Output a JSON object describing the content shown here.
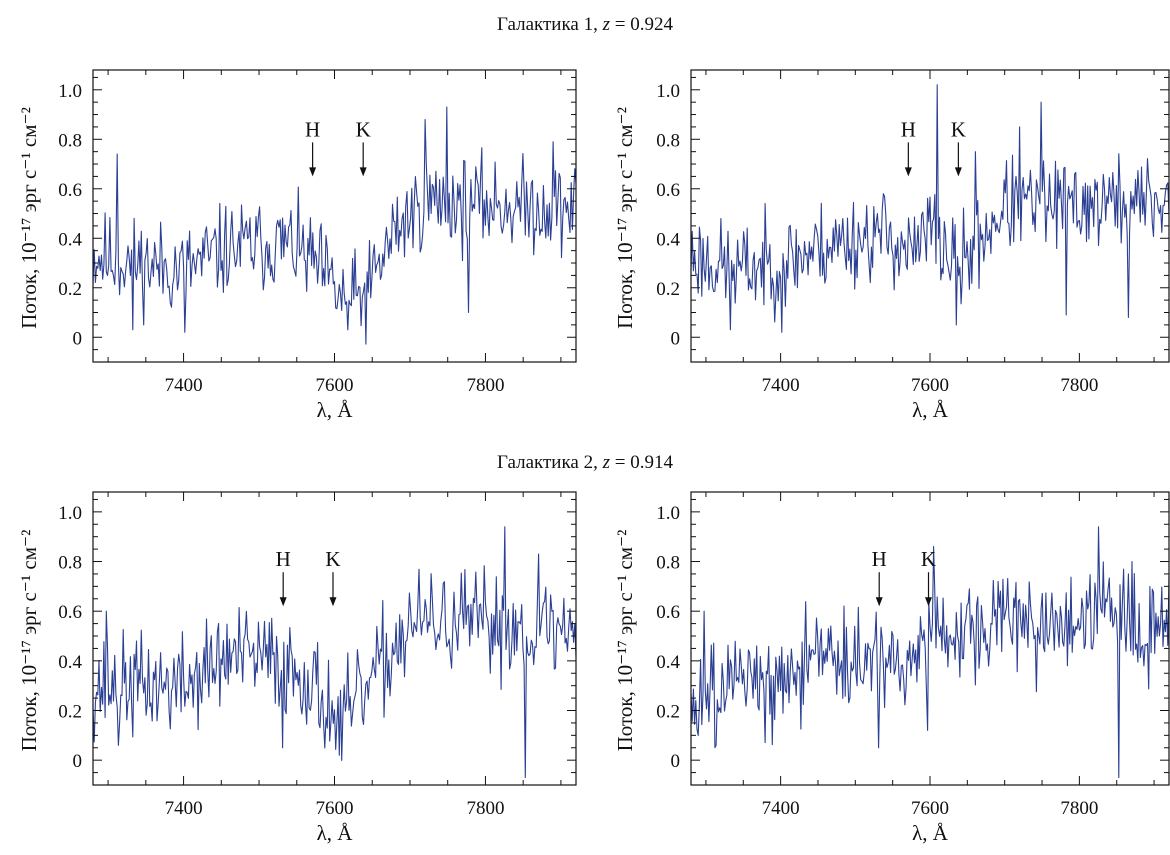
{
  "groups": [
    {
      "title_text": "Галактика 1, ",
      "z_symbol": "z",
      "z_value": " = 0.924"
    },
    {
      "title_text": "Галактика 2, ",
      "z_symbol": "z",
      "z_value": " = 0.914"
    }
  ],
  "axis_text": {
    "ylabel": "Поток, 10⁻¹⁷ эрг с⁻¹ см⁻²",
    "xlabel": "λ, Å"
  },
  "colors": {
    "spectrum": "#2b3f93",
    "axes": "#111111"
  },
  "chart_data": [
    {
      "type": "line",
      "group": 0,
      "panel": "left",
      "xlim": [
        7280,
        7920
      ],
      "ylim": [
        -0.1,
        1.08
      ],
      "xticks": [
        7400,
        7600,
        7800
      ],
      "yticks": [
        0,
        0.2,
        0.4,
        0.6,
        0.8,
        1.0
      ],
      "xlabel": "λ, Å",
      "ylabel": "Поток, 10⁻¹⁷ эрг с⁻¹ см⁻²",
      "markers": [
        {
          "label": "H",
          "x": 7571,
          "y_tip": 0.65
        },
        {
          "label": "K",
          "x": 7638,
          "y_tip": 0.65
        }
      ],
      "spectrum": {
        "x_start": 7280,
        "x_end": 7920,
        "step": 1.6,
        "seed": 11,
        "profile": [
          [
            7280,
            0.33
          ],
          [
            7320,
            0.31
          ],
          [
            7400,
            0.27
          ],
          [
            7460,
            0.36
          ],
          [
            7540,
            0.38
          ],
          [
            7580,
            0.28
          ],
          [
            7610,
            0.15
          ],
          [
            7640,
            0.16
          ],
          [
            7680,
            0.43
          ],
          [
            7720,
            0.55
          ],
          [
            7920,
            0.52
          ]
        ],
        "noise": 0.09,
        "spikes": [
          [
            7312,
            0.74
          ],
          [
            7333,
            0.03
          ],
          [
            7402,
            0.02
          ],
          [
            7618,
            0.03
          ],
          [
            7720,
            0.88
          ],
          [
            7748,
            0.93
          ],
          [
            7778,
            0.1
          ],
          [
            7889,
            0.79
          ]
        ]
      }
    },
    {
      "type": "line",
      "group": 0,
      "panel": "right",
      "xlim": [
        7280,
        7920
      ],
      "ylim": [
        -0.1,
        1.08
      ],
      "xticks": [
        7400,
        7600,
        7800
      ],
      "yticks": [
        0,
        0.2,
        0.4,
        0.6,
        0.8,
        1.0
      ],
      "xlabel": "λ, Å",
      "ylabel": "Поток, 10⁻¹⁷ эрг с⁻¹ см⁻²",
      "markers": [
        {
          "label": "H",
          "x": 7571,
          "y_tip": 0.65
        },
        {
          "label": "K",
          "x": 7638,
          "y_tip": 0.65
        }
      ],
      "spectrum": {
        "x_start": 7280,
        "x_end": 7920,
        "step": 1.6,
        "seed": 23,
        "profile": [
          [
            7280,
            0.33
          ],
          [
            7340,
            0.27
          ],
          [
            7400,
            0.3
          ],
          [
            7460,
            0.37
          ],
          [
            7540,
            0.42
          ],
          [
            7580,
            0.33
          ],
          [
            7600,
            0.45
          ],
          [
            7620,
            0.35
          ],
          [
            7640,
            0.28
          ],
          [
            7700,
            0.53
          ],
          [
            7920,
            0.55
          ]
        ],
        "noise": 0.09,
        "spikes": [
          [
            7333,
            0.03
          ],
          [
            7402,
            0.02
          ],
          [
            7610,
            1.02
          ],
          [
            7635,
            0.05
          ],
          [
            7660,
            0.75
          ],
          [
            7720,
            0.85
          ],
          [
            7748,
            0.95
          ],
          [
            7783,
            0.09
          ],
          [
            7865,
            0.08
          ]
        ]
      }
    },
    {
      "type": "line",
      "group": 1,
      "panel": "left",
      "xlim": [
        7280,
        7920
      ],
      "ylim": [
        -0.1,
        1.08
      ],
      "xticks": [
        7400,
        7600,
        7800
      ],
      "yticks": [
        0,
        0.2,
        0.4,
        0.6,
        0.8,
        1.0
      ],
      "xlabel": "λ, Å",
      "ylabel": "Поток, 10⁻¹⁷ эрг с⁻¹ см⁻²",
      "markers": [
        {
          "label": "H",
          "x": 7532,
          "y_tip": 0.62
        },
        {
          "label": "K",
          "x": 7598,
          "y_tip": 0.62
        }
      ],
      "spectrum": {
        "x_start": 7280,
        "x_end": 7920,
        "step": 1.6,
        "seed": 37,
        "profile": [
          [
            7280,
            0.3
          ],
          [
            7400,
            0.3
          ],
          [
            7460,
            0.42
          ],
          [
            7520,
            0.4
          ],
          [
            7560,
            0.35
          ],
          [
            7590,
            0.22
          ],
          [
            7610,
            0.14
          ],
          [
            7650,
            0.32
          ],
          [
            7700,
            0.55
          ],
          [
            7780,
            0.55
          ],
          [
            7920,
            0.52
          ]
        ],
        "noise": 0.1,
        "spikes": [
          [
            7298,
            0.6
          ],
          [
            7314,
            0.06
          ],
          [
            7531,
            0.05
          ],
          [
            7606,
            0.02
          ],
          [
            7826,
            0.94
          ],
          [
            7852,
            -0.07
          ],
          [
            7870,
            0.83
          ]
        ]
      }
    },
    {
      "type": "line",
      "group": 1,
      "panel": "right",
      "xlim": [
        7280,
        7920
      ],
      "ylim": [
        -0.1,
        1.08
      ],
      "xticks": [
        7400,
        7600,
        7800
      ],
      "yticks": [
        0,
        0.2,
        0.4,
        0.6,
        0.8,
        1.0
      ],
      "xlabel": "λ, Å",
      "ylabel": "Поток, 10⁻¹⁷ эрг с⁻¹ см⁻²",
      "markers": [
        {
          "label": "H",
          "x": 7532,
          "y_tip": 0.62
        },
        {
          "label": "K",
          "x": 7598,
          "y_tip": 0.62
        }
      ],
      "spectrum": {
        "x_start": 7280,
        "x_end": 7920,
        "step": 1.6,
        "seed": 49,
        "profile": [
          [
            7280,
            0.3
          ],
          [
            7400,
            0.3
          ],
          [
            7460,
            0.4
          ],
          [
            7520,
            0.38
          ],
          [
            7560,
            0.36
          ],
          [
            7590,
            0.38
          ],
          [
            7610,
            0.52
          ],
          [
            7700,
            0.55
          ],
          [
            7920,
            0.55
          ]
        ],
        "noise": 0.1,
        "spikes": [
          [
            7298,
            0.6
          ],
          [
            7314,
            0.06
          ],
          [
            7531,
            0.05
          ],
          [
            7596,
            0.12
          ],
          [
            7604,
            0.86
          ],
          [
            7826,
            0.94
          ],
          [
            7852,
            -0.07
          ],
          [
            7870,
            0.8
          ]
        ]
      }
    }
  ]
}
